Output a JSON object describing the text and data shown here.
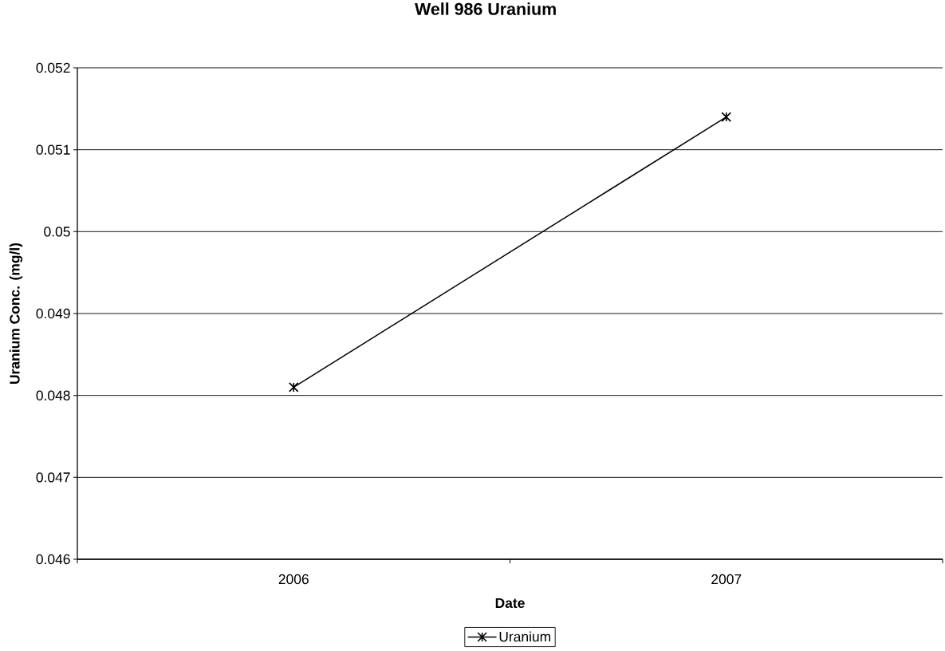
{
  "chart_data": {
    "type": "line",
    "title": "Well 986 Uranium",
    "xlabel": "Date",
    "ylabel": "Uranium Conc. (mg/l)",
    "categories": [
      "2006",
      "2007"
    ],
    "series": [
      {
        "name": "Uranium",
        "color": "#000000",
        "values": [
          0.0481,
          0.0514
        ]
      }
    ],
    "ylim": [
      0.046,
      0.052
    ],
    "yticks": [
      0.046,
      0.047,
      0.048,
      0.049,
      0.05,
      0.051,
      0.052
    ],
    "grid": "y",
    "legend": "bottom",
    "marker": "cross",
    "line_style": "solid"
  }
}
